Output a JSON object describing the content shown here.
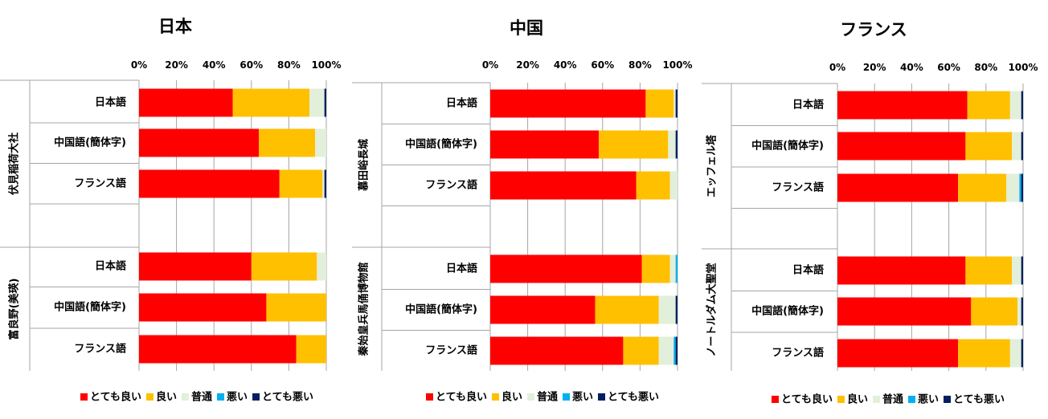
{
  "colors": [
    "#ff0000",
    "#ffc000",
    "#e2efda",
    "#00b0f0",
    "#002060"
  ],
  "chart_data": [
    {
      "type": "bar",
      "stacked": "percent",
      "orientation": "horizontal",
      "title": "日本",
      "xticks": [
        "0%",
        "20%",
        "40%",
        "60%",
        "80%",
        "100%"
      ],
      "legend": [
        "とても良い",
        "良い",
        "普通",
        "悪い",
        "とても悪い"
      ],
      "legend_position": "bottom",
      "groups": [
        {
          "label": "伏見稲荷大社",
          "rows": [
            {
              "category": "日本語",
              "values": [
                50,
                41,
                8,
                0,
                1
              ]
            },
            {
              "category": "中国語(簡体字)",
              "values": [
                64,
                30,
                6,
                0,
                0
              ]
            },
            {
              "category": "フランス語",
              "values": [
                75,
                23,
                1,
                0,
                1
              ]
            }
          ]
        },
        {
          "label": "富良野(美瑛)",
          "rows": [
            {
              "category": "日本語",
              "values": [
                60,
                35,
                5,
                0,
                0
              ]
            },
            {
              "category": "中国語(簡体字)",
              "values": [
                68,
                32,
                0,
                0,
                0
              ]
            },
            {
              "category": "フランス語",
              "values": [
                84,
                16,
                0,
                0,
                0
              ]
            }
          ]
        }
      ]
    },
    {
      "type": "bar",
      "stacked": "percent",
      "orientation": "horizontal",
      "title": "中国",
      "xticks": [
        "0%",
        "20%",
        "40%",
        "60%",
        "80%",
        "100%"
      ],
      "legend": [
        "とても良い",
        "良い",
        "普通",
        "悪い",
        "とても悪い"
      ],
      "legend_position": "bottom",
      "groups": [
        {
          "label": "慕田峪長城",
          "rows": [
            {
              "category": "日本語",
              "values": [
                83,
                15,
                1,
                0,
                1
              ]
            },
            {
              "category": "中国語(簡体字)",
              "values": [
                58,
                37,
                4,
                0,
                1
              ]
            },
            {
              "category": "フランス語",
              "values": [
                78,
                18,
                4,
                0,
                0
              ]
            }
          ]
        },
        {
          "label": "秦始皇兵馬俑博物館",
          "rows": [
            {
              "category": "日本語",
              "values": [
                81,
                15,
                3,
                1,
                0
              ]
            },
            {
              "category": "中国語(簡体字)",
              "values": [
                56,
                34,
                9,
                0,
                1
              ]
            },
            {
              "category": "フランス語",
              "values": [
                71,
                19,
                8,
                1,
                1
              ]
            }
          ]
        }
      ]
    },
    {
      "type": "bar",
      "stacked": "percent",
      "orientation": "horizontal",
      "title": "フランス",
      "xticks": [
        "0%",
        "20%",
        "40%",
        "60%",
        "80%",
        "100%"
      ],
      "legend": [
        "とても良い",
        "良い",
        "普通",
        "悪い",
        "とても悪い"
      ],
      "legend_position": "bottom",
      "groups": [
        {
          "label": "エッフェル塔",
          "rows": [
            {
              "category": "日本語",
              "values": [
                70,
                23,
                6,
                0,
                1
              ]
            },
            {
              "category": "中国語(簡体字)",
              "values": [
                69,
                25,
                5,
                0,
                1
              ]
            },
            {
              "category": "フランス語",
              "values": [
                65,
                26,
                7,
                1,
                1
              ]
            }
          ]
        },
        {
          "label": "ノートルダム大聖堂",
          "rows": [
            {
              "category": "日本語",
              "values": [
                69,
                25,
                5,
                0,
                1
              ]
            },
            {
              "category": "中国語(簡体字)",
              "values": [
                72,
                25,
                2,
                0,
                1
              ]
            },
            {
              "category": "フランス語",
              "values": [
                65,
                28,
                6,
                0,
                1
              ]
            }
          ]
        }
      ]
    }
  ]
}
